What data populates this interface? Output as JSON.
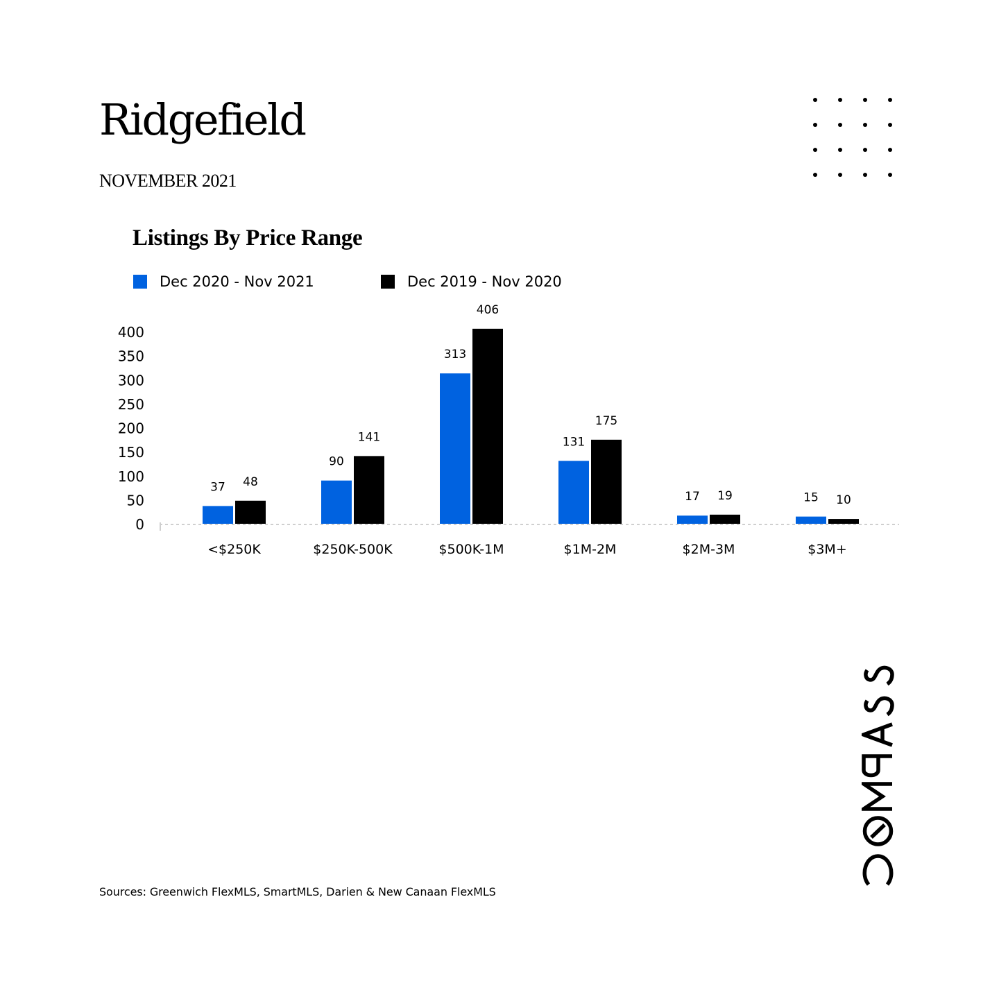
{
  "header": {
    "title": "Ridgefield",
    "subtitle": "NOVEMBER 2021"
  },
  "chart_data": {
    "type": "bar",
    "title": "Listings By Price Range",
    "xlabel": "",
    "ylabel": "",
    "categories": [
      "<$250K",
      "$250K-500K",
      "$500K-1M",
      "$1M-2M",
      "$2M-3M",
      "$3M+"
    ],
    "series": [
      {
        "name": "Dec 2020 - Nov 2021",
        "color": "#0062E0",
        "values": [
          37,
          90,
          313,
          131,
          17,
          15
        ]
      },
      {
        "name": "Dec 2019 - Nov 2020",
        "color": "#000000",
        "values": [
          48,
          141,
          406,
          175,
          19,
          10
        ]
      }
    ],
    "yticks": [
      "0",
      "50",
      "100",
      "150",
      "200",
      "250",
      "300",
      "350",
      "400"
    ],
    "ylim": [
      0,
      400
    ],
    "grid": false,
    "legend_position": "top-left"
  },
  "footer": {
    "source": "Sources: Greenwich FlexMLS, SmartMLS, Darien & New Canaan FlexMLS"
  },
  "brand": {
    "logo_text": "COMPASS",
    "logo_icon": "compass-logo-icon",
    "decor_icon": "dot-grid-icon"
  }
}
